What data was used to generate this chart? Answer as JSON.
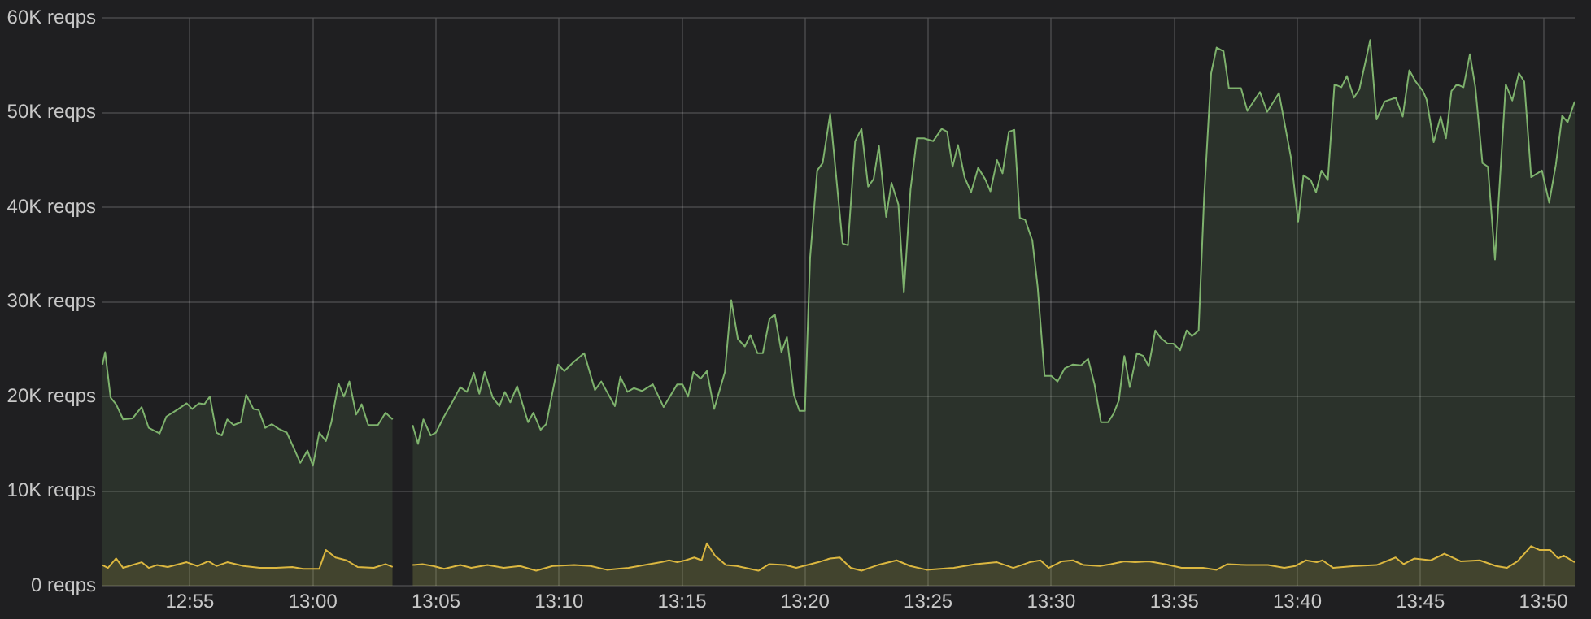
{
  "chart_data": {
    "type": "area",
    "xlim": [
      12.8575,
      13.8545
    ],
    "xticks": [
      {
        "value": 12.916667,
        "label": "12:55"
      },
      {
        "value": 13,
        "label": "13:00"
      },
      {
        "value": 13.083333,
        "label": "13:05"
      },
      {
        "value": 13.166667,
        "label": "13:10"
      },
      {
        "value": 13.25,
        "label": "13:15"
      },
      {
        "value": 13.333333,
        "label": "13:20"
      },
      {
        "value": 13.416667,
        "label": "13:25"
      },
      {
        "value": 13.5,
        "label": "13:30"
      },
      {
        "value": 13.583333,
        "label": "13:35"
      },
      {
        "value": 13.666667,
        "label": "13:40"
      },
      {
        "value": 13.75,
        "label": "13:45"
      },
      {
        "value": 13.833333,
        "label": "13:50"
      }
    ],
    "ylim": [
      0,
      60000
    ],
    "yticks": [
      {
        "value": 0,
        "label": "0 reqps"
      },
      {
        "value": 10000,
        "label": "10K reqps"
      },
      {
        "value": 20000,
        "label": "20K reqps"
      },
      {
        "value": 30000,
        "label": "30K reqps"
      },
      {
        "value": 40000,
        "label": "40K reqps"
      },
      {
        "value": 50000,
        "label": "50K reqps"
      },
      {
        "value": 60000,
        "label": "60K reqps"
      }
    ],
    "grid": true,
    "legend": false,
    "marker": "none",
    "line_style": "solid",
    "series": [
      {
        "color": "#7eb26d",
        "x": [
          12.8575,
          12.8593,
          12.863,
          12.8667,
          12.8715,
          12.8778,
          12.884,
          12.8888,
          12.8962,
          12.9008,
          12.909,
          12.9145,
          12.9182,
          12.9228,
          12.9265,
          12.9302,
          12.9347,
          12.9383,
          12.942,
          12.9463,
          12.9512,
          12.9548,
          12.9597,
          12.9633,
          12.9677,
          12.9722,
          12.9768,
          12.9823,
          12.9878,
          12.9915,
          12.9963,
          13.0,
          13.0043,
          13.0088,
          13.0125,
          13.0173,
          13.021,
          13.0247,
          13.0293,
          13.033,
          13.0375,
          13.044,
          13.0492,
          13.054,
          13.06,
          13.0675,
          13.0712,
          13.0748,
          13.0797,
          13.0833,
          13.0888,
          13.0943,
          13.0998,
          13.1043,
          13.109,
          13.1127,
          13.1163,
          13.1218,
          13.1263,
          13.13,
          13.1337,
          13.1383,
          13.1457,
          13.1493,
          13.1542,
          13.158,
          13.166,
          13.1703,
          13.1762,
          13.1837,
          13.191,
          13.1953,
          13.2045,
          13.2082,
          13.213,
          13.2173,
          13.2228,
          13.2302,
          13.2375,
          13.2467,
          13.2503,
          13.254,
          13.2577,
          13.2625,
          13.2668,
          13.2717,
          13.279,
          13.2833,
          13.2878,
          13.2925,
          13.2963,
          13.301,
          13.3047,
          13.3092,
          13.3128,
          13.3173,
          13.321,
          13.3257,
          13.3295,
          13.3332,
          13.3367,
          13.3415,
          13.3452,
          13.3503,
          13.3587,
          13.3623,
          13.3672,
          13.3715,
          13.376,
          13.3797,
          13.3833,
          13.3882,
          13.3918,
          13.3965,
          13.4002,
          13.4047,
          13.409,
          13.4138,
          13.42,
          13.4258,
          13.4295,
          13.4332,
          13.4368,
          13.4413,
          13.4457,
          13.4505,
          13.4552,
          13.4588,
          13.4633,
          13.467,
          13.4713,
          13.475,
          13.4787,
          13.4823,
          13.4872,
          13.4908,
          13.4955,
          13.5,
          13.5043,
          13.5092,
          13.5147,
          13.5202,
          13.525,
          13.5293,
          13.5337,
          13.5385,
          13.5422,
          13.5458,
          13.5495,
          13.5532,
          13.558,
          13.5623,
          13.566,
          13.5705,
          13.5742,
          13.5788,
          13.5827,
          13.5873,
          13.5917,
          13.5953,
          13.5998,
          13.6035,
          13.6083,
          13.612,
          13.6167,
          13.6203,
          13.6285,
          13.6328,
          13.6413,
          13.6462,
          13.6542,
          13.6623,
          13.6672,
          13.6708,
          13.6757,
          13.6793,
          13.683,
          13.6873,
          13.6918,
          13.6965,
          13.7002,
          13.705,
          13.7087,
          13.716,
          13.7203,
          13.7258,
          13.7333,
          13.738,
          13.7425,
          13.7468,
          13.7517,
          13.7542,
          13.759,
          13.7637,
          13.7673,
          13.771,
          13.7747,
          13.7792,
          13.7835,
          13.7872,
          13.792,
          13.7957,
          13.8005,
          13.8078,
          13.8122,
          13.8167,
          13.8203,
          13.825,
          13.8323,
          13.8372,
          13.8417,
          13.846,
          13.8497,
          13.8545
        ],
        "values": [
          23400,
          24700,
          19900,
          19200,
          17600,
          17700,
          18900,
          16700,
          16100,
          17900,
          18700,
          19300,
          18700,
          19300,
          19200,
          20000,
          16200,
          15900,
          17600,
          17000,
          17300,
          20200,
          18700,
          18600,
          16700,
          17100,
          16600,
          16200,
          14300,
          13000,
          14300,
          12700,
          16200,
          15300,
          17300,
          21400,
          20000,
          21600,
          18100,
          19200,
          17000,
          17000,
          18300,
          17600,
          null,
          17000,
          15000,
          17600,
          15900,
          16200,
          17900,
          19400,
          21000,
          20500,
          22500,
          20300,
          22600,
          19900,
          19000,
          20500,
          19400,
          21100,
          17300,
          18300,
          16500,
          17100,
          23400,
          22700,
          23600,
          24600,
          20700,
          21600,
          19000,
          22100,
          20500,
          20900,
          20600,
          21300,
          18900,
          21300,
          21300,
          20000,
          22600,
          21900,
          22700,
          18700,
          22600,
          30200,
          26100,
          25300,
          26500,
          24600,
          24600,
          28200,
          28700,
          24700,
          26300,
          20200,
          18500,
          18500,
          34700,
          43900,
          44700,
          49900,
          36200,
          36000,
          47000,
          48300,
          42200,
          43000,
          46500,
          39000,
          42600,
          40300,
          31000,
          41900,
          47300,
          47300,
          47000,
          48300,
          48000,
          44300,
          46600,
          43200,
          41600,
          44200,
          43000,
          41700,
          45000,
          43600,
          48000,
          48200,
          38900,
          38700,
          36500,
          31600,
          22200,
          22200,
          21600,
          23000,
          23400,
          23300,
          24000,
          21300,
          17300,
          17300,
          18200,
          19600,
          24300,
          21000,
          24600,
          24300,
          23200,
          27000,
          26200,
          25600,
          25600,
          24900,
          27000,
          26400,
          27000,
          41000,
          54200,
          56900,
          56500,
          52600,
          52600,
          50200,
          52200,
          50100,
          52100,
          45300,
          38500,
          43400,
          42900,
          41600,
          43900,
          42900,
          53000,
          52700,
          53900,
          51600,
          52500,
          57700,
          49300,
          51200,
          51600,
          49600,
          54500,
          53300,
          52300,
          51400,
          46900,
          49600,
          47300,
          52300,
          53000,
          52700,
          56200,
          52700,
          44700,
          44300,
          34500,
          53000,
          51300,
          54200,
          53300,
          43200,
          43900,
          40500,
          44500,
          49700,
          49000,
          51200
        ]
      },
      {
        "color": "#eab839",
        "x": [
          12.8575,
          12.8612,
          12.8667,
          12.8715,
          12.8778,
          12.884,
          12.8888,
          12.8943,
          12.9017,
          12.9145,
          12.9218,
          12.9292,
          12.9347,
          12.942,
          12.953,
          12.964,
          12.975,
          12.986,
          12.9933,
          13.0043,
          13.0088,
          13.0153,
          13.0228,
          13.0302,
          13.0412,
          13.0492,
          13.054,
          13.06,
          13.0675,
          13.0742,
          13.0815,
          13.0888,
          13.0998,
          13.1072,
          13.1182,
          13.1292,
          13.1402,
          13.1512,
          13.1623,
          13.177,
          13.188,
          13.199,
          13.2137,
          13.2247,
          13.2357,
          13.2412,
          13.2467,
          13.2522,
          13.2583,
          13.2632,
          13.2668,
          13.2723,
          13.2797,
          13.287,
          13.3017,
          13.309,
          13.32,
          13.3273,
          13.3348,
          13.3422,
          13.3502,
          13.3568,
          13.3642,
          13.3715,
          13.3825,
          13.3953,
          13.4045,
          13.4155,
          13.434,
          13.4487,
          13.4633,
          13.4743,
          13.4853,
          13.4927,
          13.4982,
          13.5073,
          13.5147,
          13.522,
          13.533,
          13.5403,
          13.5495,
          13.5568,
          13.566,
          13.5772,
          13.5882,
          13.6028,
          13.612,
          13.6193,
          13.6322,
          13.6468,
          13.6578,
          13.6652,
          13.6725,
          13.6798,
          13.6837,
          13.691,
          13.7057,
          13.7203,
          13.7332,
          13.7387,
          13.746,
          13.757,
          13.7662,
          13.7772,
          13.7902,
          13.8012,
          13.8085,
          13.8158,
          13.825,
          13.8305,
          13.8378,
          13.8433,
          13.847,
          13.8545
        ],
        "values": [
          2200,
          1900,
          2900,
          1900,
          2200,
          2500,
          1900,
          2200,
          2000,
          2500,
          2100,
          2600,
          2100,
          2500,
          2100,
          1900,
          1900,
          2000,
          1800,
          1800,
          3800,
          3000,
          2700,
          2000,
          1900,
          2300,
          2000,
          null,
          2200,
          2300,
          2100,
          1800,
          2200,
          1900,
          2200,
          1900,
          2100,
          1600,
          2100,
          2200,
          2100,
          1700,
          1900,
          2200,
          2500,
          2700,
          2500,
          2700,
          3000,
          2700,
          4500,
          3200,
          2200,
          2100,
          1600,
          2300,
          2200,
          1900,
          2200,
          2500,
          2900,
          3000,
          1900,
          1600,
          2200,
          2700,
          2100,
          1700,
          1900,
          2300,
          2500,
          1900,
          2500,
          2700,
          1900,
          2600,
          2700,
          2200,
          2100,
          2300,
          2600,
          2500,
          2600,
          2300,
          1900,
          1900,
          1700,
          2300,
          2200,
          2200,
          1900,
          2100,
          2700,
          2500,
          2700,
          1900,
          2100,
          2200,
          3000,
          2300,
          2900,
          2700,
          3400,
          2600,
          2700,
          2100,
          1900,
          2600,
          4200,
          3800,
          3800,
          2900,
          3200,
          2500
        ]
      }
    ]
  }
}
